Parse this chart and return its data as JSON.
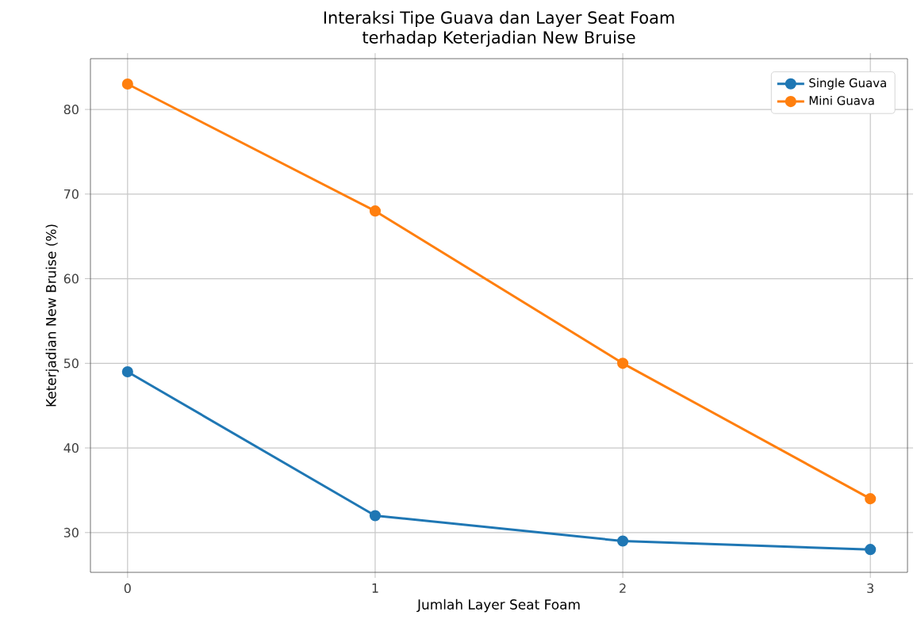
{
  "chart_data": {
    "type": "line",
    "title": "Interaksi Tipe Guava dan Layer Seat Foam",
    "subtitle": "terhadap Keterjadian New Bruise",
    "xlabel": "Jumlah Layer Seat Foam",
    "ylabel": "Keterjadian New Bruise (%)",
    "x": [
      0,
      1,
      2,
      3
    ],
    "xlim": [
      -0.15,
      3.15
    ],
    "xticks": [
      0,
      1,
      2,
      3
    ],
    "ylim": [
      25.3,
      86
    ],
    "yticks": [
      30,
      40,
      50,
      60,
      70,
      80
    ],
    "series": [
      {
        "name": "Single Guava",
        "color": "#1f77b4",
        "values": [
          49,
          32,
          29,
          28
        ]
      },
      {
        "name": "Mini Guava",
        "color": "#ff7f0e",
        "values": [
          83,
          68,
          50,
          34
        ]
      }
    ],
    "grid": true,
    "legend": "top right",
    "marker": "circle",
    "line_style": "solid"
  }
}
